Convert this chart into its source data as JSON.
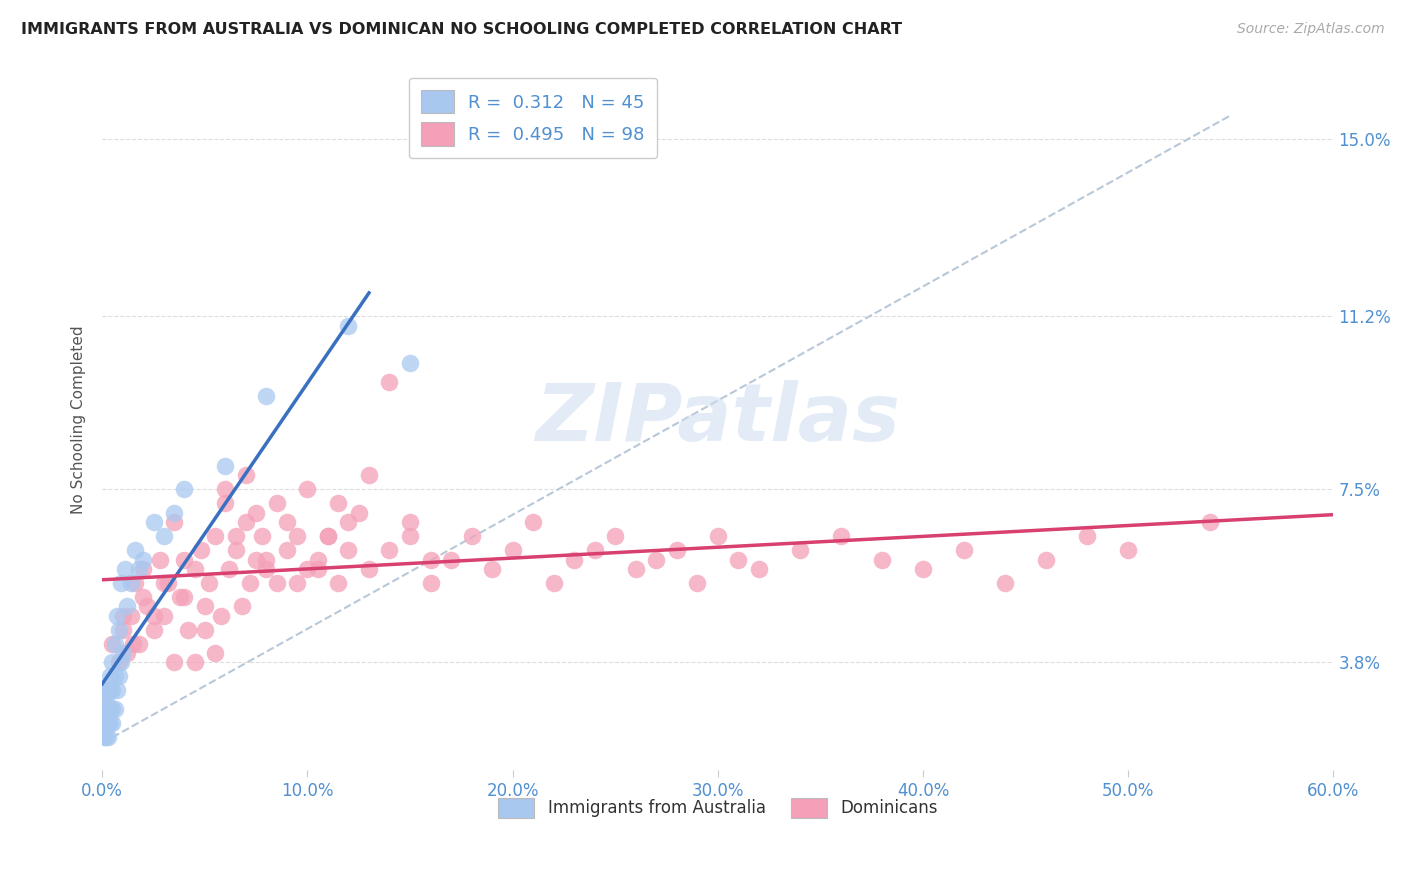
{
  "title": "IMMIGRANTS FROM AUSTRALIA VS DOMINICAN NO SCHOOLING COMPLETED CORRELATION CHART",
  "source": "Source: ZipAtlas.com",
  "xlabel_ticks": [
    "0.0%",
    "10.0%",
    "20.0%",
    "30.0%",
    "40.0%",
    "50.0%",
    "60.0%"
  ],
  "xlabel_vals": [
    0.0,
    0.1,
    0.2,
    0.3,
    0.4,
    0.5,
    0.6
  ],
  "ylabel_ticks": [
    "3.8%",
    "7.5%",
    "11.2%",
    "15.0%"
  ],
  "ylabel_vals": [
    0.038,
    0.075,
    0.112,
    0.15
  ],
  "ylim": [
    0.015,
    0.165
  ],
  "xlim": [
    0.0,
    0.6
  ],
  "ylabel_label": "No Schooling Completed",
  "legend_label1": "Immigrants from Australia",
  "legend_label2": "Dominicans",
  "R1": "0.312",
  "N1": "45",
  "R2": "0.495",
  "N2": "98",
  "color_australia": "#a8c8f0",
  "color_dominican": "#f4a0b8",
  "color_regression_australia": "#3a70c0",
  "color_regression_dominican": "#d84070",
  "color_diagonal": "#b8c8d8",
  "color_title": "#222222",
  "color_source": "#aaaaaa",
  "color_axis_labels": "#5090d0",
  "watermark_text": "ZIPatlas",
  "australia_x": [
    0.001,
    0.001,
    0.001,
    0.001,
    0.002,
    0.002,
    0.002,
    0.002,
    0.002,
    0.003,
    0.003,
    0.003,
    0.003,
    0.004,
    0.004,
    0.004,
    0.004,
    0.005,
    0.005,
    0.005,
    0.005,
    0.006,
    0.006,
    0.006,
    0.007,
    0.007,
    0.008,
    0.008,
    0.009,
    0.009,
    0.01,
    0.011,
    0.012,
    0.014,
    0.016,
    0.018,
    0.02,
    0.025,
    0.03,
    0.035,
    0.04,
    0.06,
    0.08,
    0.12,
    0.15
  ],
  "australia_y": [
    0.022,
    0.025,
    0.028,
    0.03,
    0.022,
    0.025,
    0.028,
    0.03,
    0.032,
    0.022,
    0.025,
    0.028,
    0.032,
    0.025,
    0.028,
    0.032,
    0.035,
    0.025,
    0.028,
    0.032,
    0.038,
    0.028,
    0.035,
    0.042,
    0.032,
    0.048,
    0.035,
    0.045,
    0.038,
    0.055,
    0.04,
    0.058,
    0.05,
    0.055,
    0.062,
    0.058,
    0.06,
    0.068,
    0.065,
    0.07,
    0.075,
    0.08,
    0.095,
    0.11,
    0.102
  ],
  "dominican_x": [
    0.005,
    0.008,
    0.01,
    0.012,
    0.014,
    0.016,
    0.018,
    0.02,
    0.022,
    0.025,
    0.028,
    0.03,
    0.032,
    0.035,
    0.038,
    0.04,
    0.042,
    0.045,
    0.048,
    0.05,
    0.052,
    0.055,
    0.058,
    0.06,
    0.062,
    0.065,
    0.068,
    0.07,
    0.072,
    0.075,
    0.078,
    0.08,
    0.085,
    0.09,
    0.095,
    0.1,
    0.105,
    0.11,
    0.115,
    0.12,
    0.125,
    0.13,
    0.14,
    0.15,
    0.16,
    0.17,
    0.18,
    0.19,
    0.2,
    0.21,
    0.22,
    0.23,
    0.24,
    0.25,
    0.26,
    0.27,
    0.28,
    0.29,
    0.3,
    0.31,
    0.32,
    0.34,
    0.36,
    0.38,
    0.4,
    0.42,
    0.44,
    0.46,
    0.48,
    0.5,
    0.01,
    0.015,
    0.02,
    0.025,
    0.03,
    0.035,
    0.04,
    0.045,
    0.05,
    0.055,
    0.06,
    0.065,
    0.07,
    0.075,
    0.08,
    0.085,
    0.09,
    0.095,
    0.1,
    0.105,
    0.11,
    0.115,
    0.12,
    0.13,
    0.14,
    0.15,
    0.16,
    0.54
  ],
  "dominican_y": [
    0.042,
    0.038,
    0.045,
    0.04,
    0.048,
    0.055,
    0.042,
    0.058,
    0.05,
    0.045,
    0.06,
    0.048,
    0.055,
    0.068,
    0.052,
    0.06,
    0.045,
    0.058,
    0.062,
    0.05,
    0.055,
    0.065,
    0.048,
    0.072,
    0.058,
    0.062,
    0.05,
    0.068,
    0.055,
    0.06,
    0.065,
    0.058,
    0.055,
    0.062,
    0.065,
    0.058,
    0.06,
    0.065,
    0.055,
    0.062,
    0.07,
    0.058,
    0.062,
    0.068,
    0.055,
    0.06,
    0.065,
    0.058,
    0.062,
    0.068,
    0.055,
    0.06,
    0.062,
    0.065,
    0.058,
    0.06,
    0.062,
    0.055,
    0.065,
    0.06,
    0.058,
    0.062,
    0.065,
    0.06,
    0.058,
    0.062,
    0.055,
    0.06,
    0.065,
    0.062,
    0.048,
    0.042,
    0.052,
    0.048,
    0.055,
    0.038,
    0.052,
    0.038,
    0.045,
    0.04,
    0.075,
    0.065,
    0.078,
    0.07,
    0.06,
    0.072,
    0.068,
    0.055,
    0.075,
    0.058,
    0.065,
    0.072,
    0.068,
    0.078,
    0.098,
    0.065,
    0.06,
    0.068
  ]
}
